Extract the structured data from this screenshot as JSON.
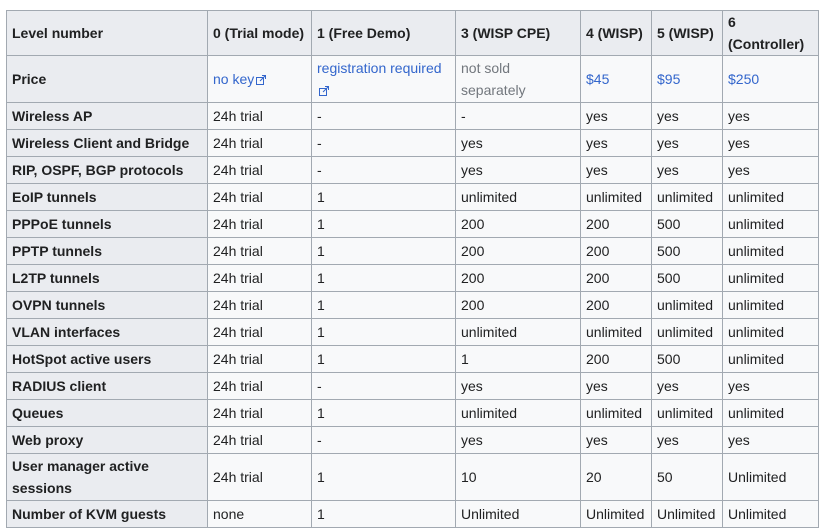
{
  "table": {
    "headers": [
      "Level number",
      "0 (Trial mode)",
      "1 (Free Demo)",
      "3 (WISP CPE)",
      "4 (WISP)",
      "5 (WISP)",
      "6 (Controller)"
    ],
    "price_row": {
      "label": "Price",
      "level0": "no key",
      "level1": "registration required",
      "level3": "not sold separately",
      "level4": "$45",
      "level5": "$95",
      "level6": "$250"
    },
    "rows": [
      {
        "label": "Wireless AP",
        "values": [
          "24h trial",
          "-",
          "-",
          "yes",
          "yes",
          "yes"
        ]
      },
      {
        "label": "Wireless Client and Bridge",
        "values": [
          "24h trial",
          "-",
          "yes",
          "yes",
          "yes",
          "yes"
        ]
      },
      {
        "label": "RIP, OSPF, BGP protocols",
        "values": [
          "24h trial",
          "-",
          "yes",
          "yes",
          "yes",
          "yes"
        ]
      },
      {
        "label": "EoIP tunnels",
        "values": [
          "24h trial",
          "1",
          "unlimited",
          "unlimited",
          "unlimited",
          "unlimited"
        ]
      },
      {
        "label": "PPPoE tunnels",
        "values": [
          "24h trial",
          "1",
          "200",
          "200",
          "500",
          "unlimited"
        ]
      },
      {
        "label": "PPTP tunnels",
        "values": [
          "24h trial",
          "1",
          "200",
          "200",
          "500",
          "unlimited"
        ]
      },
      {
        "label": "L2TP tunnels",
        "values": [
          "24h trial",
          "1",
          "200",
          "200",
          "500",
          "unlimited"
        ]
      },
      {
        "label": "OVPN tunnels",
        "values": [
          "24h trial",
          "1",
          "200",
          "200",
          "unlimited",
          "unlimited"
        ]
      },
      {
        "label": "VLAN interfaces",
        "values": [
          "24h trial",
          "1",
          "unlimited",
          "unlimited",
          "unlimited",
          "unlimited"
        ]
      },
      {
        "label": "HotSpot active users",
        "values": [
          "24h trial",
          "1",
          "1",
          "200",
          "500",
          "unlimited"
        ]
      },
      {
        "label": "RADIUS client",
        "values": [
          "24h trial",
          "-",
          "yes",
          "yes",
          "yes",
          "yes"
        ]
      },
      {
        "label": "Queues",
        "values": [
          "24h trial",
          "1",
          "unlimited",
          "unlimited",
          "unlimited",
          "unlimited"
        ]
      },
      {
        "label": "Web proxy",
        "values": [
          "24h trial",
          "-",
          "yes",
          "yes",
          "yes",
          "yes"
        ]
      },
      {
        "label": "User manager active sessions",
        "values": [
          "24h trial",
          "1",
          "10",
          "20",
          "50",
          "Unlimited"
        ]
      },
      {
        "label": "Number of KVM guests",
        "values": [
          "none",
          "1",
          "Unlimited",
          "Unlimited",
          "Unlimited",
          "Unlimited"
        ]
      }
    ],
    "icons": {
      "external_link": "external-link-icon"
    },
    "colors": {
      "header_bg": "#eaecf0",
      "cell_bg": "#f8f9fa",
      "border": "#a2a9b1",
      "link": "#3366cc",
      "muted": "#72777d"
    }
  }
}
